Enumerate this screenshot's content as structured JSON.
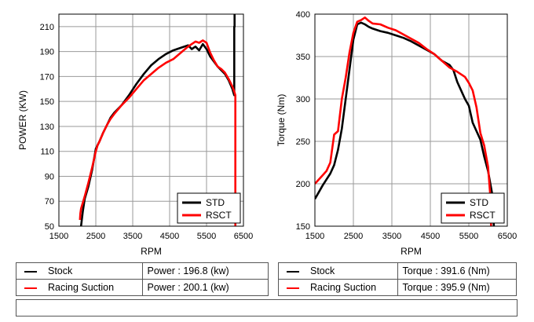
{
  "colors": {
    "stock": "#000000",
    "racing": "#ff0000"
  },
  "chart_data": [
    {
      "type": "line",
      "title": "",
      "xlabel": "RPM",
      "ylabel": "POWER (KW)",
      "xlim": [
        1500,
        6500
      ],
      "ylim": [
        50,
        220
      ],
      "xticks": [
        1500,
        2500,
        3500,
        4500,
        5500,
        6500
      ],
      "yticks": [
        50,
        70,
        90,
        110,
        130,
        150,
        170,
        190,
        210
      ],
      "grid": true,
      "legend": {
        "position": "bottom-right",
        "entries": [
          "STD",
          "RSCT"
        ]
      },
      "series": [
        {
          "name": "STD",
          "color": "#000000",
          "x": [
            2100,
            2150,
            2200,
            2300,
            2400,
            2500,
            2550,
            2600,
            2700,
            2800,
            2900,
            3000,
            3200,
            3400,
            3600,
            3800,
            4000,
            4200,
            4400,
            4600,
            4800,
            5000,
            5100,
            5200,
            5300,
            5400,
            5500,
            5600,
            5700,
            5800,
            5900,
            6000,
            6100,
            6200,
            6230,
            6250,
            6250,
            6260,
            6260
          ],
          "y": [
            50,
            62,
            72,
            82,
            95,
            112,
            115,
            118,
            125,
            131,
            137,
            141,
            147,
            155,
            164,
            172,
            179,
            184,
            188,
            191,
            193,
            195,
            192,
            194,
            191,
            196,
            192,
            186,
            182,
            178,
            175,
            172,
            167,
            160,
            157,
            155,
            210,
            210,
            225
          ]
        },
        {
          "name": "RSCT",
          "color": "#ff0000",
          "x": [
            2070,
            2080,
            2100,
            2200,
            2300,
            2400,
            2500,
            2550,
            2600,
            2700,
            2800,
            2900,
            3000,
            3200,
            3400,
            3600,
            3800,
            4000,
            4200,
            4400,
            4600,
            4800,
            5000,
            5100,
            5200,
            5300,
            5400,
            5500,
            5600,
            5700,
            5800,
            5900,
            6000,
            6100,
            6200,
            6250,
            6280,
            6280
          ],
          "y": [
            55,
            60,
            64,
            74,
            85,
            97,
            110,
            115,
            118,
            125,
            131,
            136,
            140,
            147,
            153,
            160,
            167,
            172,
            177,
            181,
            184,
            189,
            194,
            196,
            198,
            197,
            199,
            197,
            189,
            183,
            178,
            176,
            173,
            168,
            162,
            158,
            155,
            50
          ]
        }
      ]
    },
    {
      "type": "line",
      "title": "",
      "xlabel": "RPM",
      "ylabel": "Torque (Nm)",
      "xlim": [
        1500,
        6500
      ],
      "ylim": [
        150,
        400
      ],
      "xticks": [
        1500,
        2500,
        3500,
        4500,
        5500,
        6500
      ],
      "yticks": [
        150,
        200,
        250,
        300,
        350,
        400
      ],
      "grid": true,
      "legend": {
        "position": "bottom-right",
        "entries": [
          "STD",
          "RSCT"
        ]
      },
      "series": [
        {
          "name": "STD",
          "color": "#000000",
          "x": [
            1500,
            1600,
            1700,
            1800,
            1900,
            2000,
            2100,
            2200,
            2300,
            2400,
            2500,
            2600,
            2700,
            2800,
            2900,
            3000,
            3200,
            3400,
            3600,
            3800,
            4000,
            4200,
            4400,
            4600,
            4800,
            5000,
            5100,
            5200,
            5300,
            5400,
            5500,
            5600,
            5700,
            5800,
            5900,
            6000,
            6100,
            6150
          ],
          "y": [
            182,
            190,
            198,
            205,
            212,
            222,
            240,
            265,
            300,
            335,
            370,
            388,
            390,
            388,
            385,
            383,
            380,
            378,
            375,
            372,
            368,
            363,
            358,
            353,
            345,
            340,
            334,
            320,
            310,
            300,
            292,
            272,
            262,
            252,
            232,
            215,
            190,
            150
          ]
        },
        {
          "name": "RSCT",
          "color": "#ff0000",
          "x": [
            1500,
            1600,
            1700,
            1800,
            1900,
            2000,
            2100,
            2200,
            2300,
            2400,
            2500,
            2600,
            2700,
            2800,
            2900,
            3000,
            3200,
            3400,
            3600,
            3800,
            4000,
            4200,
            4400,
            4600,
            4800,
            5000,
            5200,
            5400,
            5500,
            5600,
            5700,
            5800,
            5900,
            6000,
            6050,
            6080
          ],
          "y": [
            200,
            205,
            210,
            215,
            225,
            258,
            262,
            300,
            325,
            355,
            378,
            391,
            393,
            396,
            392,
            389,
            388,
            384,
            381,
            376,
            371,
            366,
            359,
            353,
            345,
            337,
            332,
            326,
            319,
            310,
            290,
            260,
            245,
            220,
            190,
            150
          ]
        }
      ]
    }
  ],
  "table_left": {
    "rows": [
      {
        "label": "Stock",
        "value": "Power : 196.8 (kw)"
      },
      {
        "label": "Racing Suction",
        "value": "Power : 200.1 (kw)"
      }
    ]
  },
  "table_right": {
    "rows": [
      {
        "label": "Stock",
        "value": "Torque : 391.6 (Nm)"
      },
      {
        "label": "Racing Suction",
        "value": "Torque : 395.9 (Nm)"
      }
    ]
  }
}
